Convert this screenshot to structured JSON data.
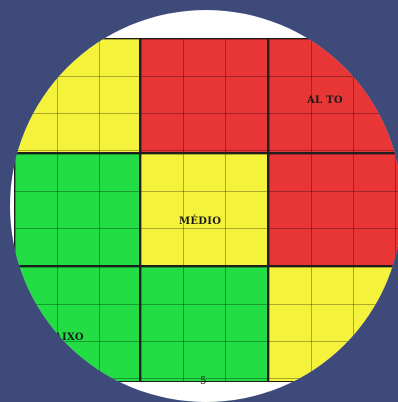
{
  "colors": {
    "background": "#3d4a7a",
    "frame": "#ffffff",
    "low": "#22dd44",
    "medium": "#f5f23c",
    "high": "#e83535"
  },
  "matrix": {
    "rows": [
      [
        "medium",
        "high",
        "high"
      ],
      [
        "low",
        "medium",
        "high"
      ],
      [
        "low",
        "low",
        "medium"
      ]
    ]
  },
  "labels": {
    "high": "AL TO",
    "medium": "MÉDIO",
    "low": "AIXO"
  },
  "axis": {
    "bottom_number": "5"
  }
}
